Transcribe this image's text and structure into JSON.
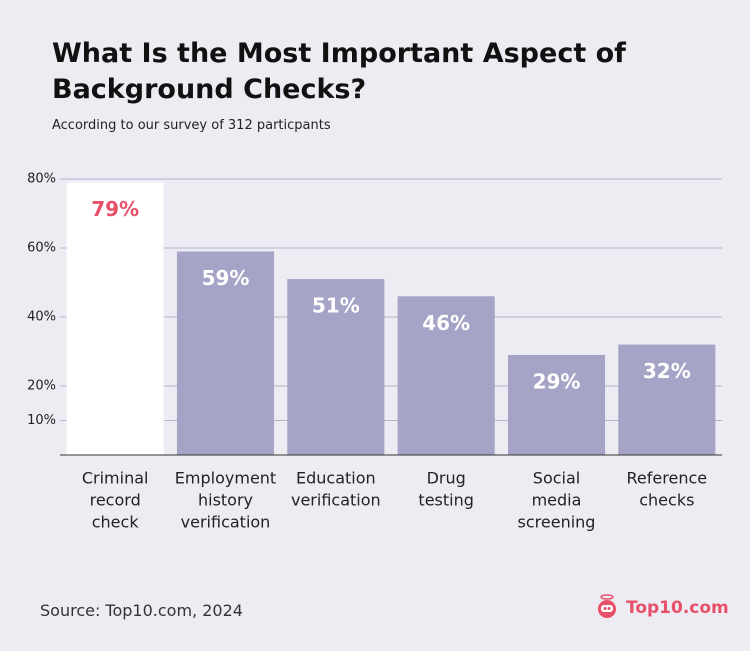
{
  "chart_data": {
    "type": "bar",
    "title": "What Is the Most Important Aspect of Background Checks?",
    "subtitle": "According to our survey of 312 particpants",
    "categories": [
      [
        "Criminal",
        "record",
        "check"
      ],
      [
        "Employment",
        "history",
        "verification"
      ],
      [
        "Education",
        "verification"
      ],
      [
        "Drug",
        "testing"
      ],
      [
        "Social",
        "media",
        "screening"
      ],
      [
        "Reference",
        "checks"
      ]
    ],
    "values": [
      79,
      59,
      51,
      46,
      29,
      32
    ],
    "value_labels": [
      "79%",
      "59%",
      "51%",
      "46%",
      "29%",
      "32%"
    ],
    "colors": [
      "#ffffff",
      "#a5a3c6",
      "#a5a3c6",
      "#a5a3c6",
      "#a5a3c6",
      "#a5a3c6"
    ],
    "label_colors": [
      "#e8506a",
      "#ffffff",
      "#ffffff",
      "#ffffff",
      "#ffffff",
      "#ffffff"
    ],
    "ylim": [
      0,
      80
    ],
    "yticks": [
      {
        "value": 80,
        "label": "80%"
      },
      {
        "value": 60,
        "label": "60%"
      },
      {
        "value": 40,
        "label": "40%"
      },
      {
        "value": 20,
        "label": "20%"
      },
      {
        "value": 10,
        "label": "10%"
      }
    ],
    "grid": true
  },
  "source": "Source: Top10.com, 2024",
  "brand": "Top10.com"
}
